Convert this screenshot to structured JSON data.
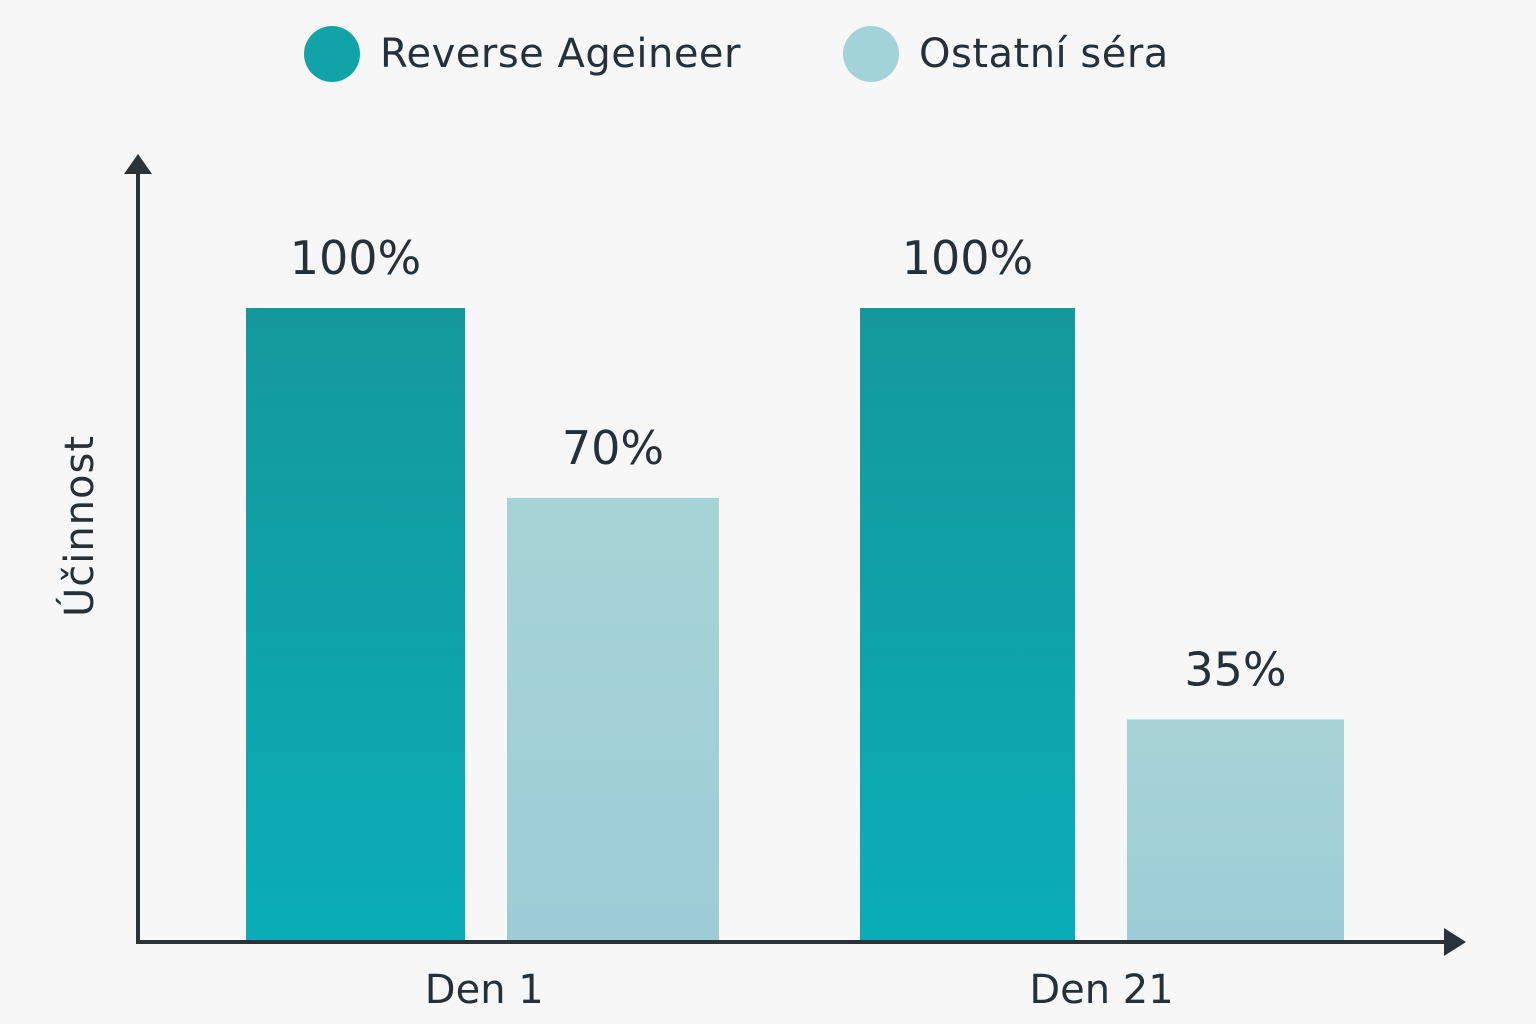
{
  "chart_data": {
    "type": "bar",
    "title": "",
    "xlabel": "",
    "ylabel": "Účinnost",
    "categories": [
      "Den 1",
      "Den 21"
    ],
    "series": [
      {
        "name": "Reverse Ageineer",
        "values": [
          100,
          100
        ],
        "labels": [
          "100%",
          "100%"
        ],
        "color": "#12a3a8"
      },
      {
        "name": "Ostatní séra",
        "values": [
          70,
          35
        ],
        "labels": [
          "70%",
          "35%"
        ],
        "color": "#a2d3d6"
      }
    ],
    "ylim": [
      0,
      120
    ],
    "grid": false,
    "legend_position": "top-center"
  }
}
